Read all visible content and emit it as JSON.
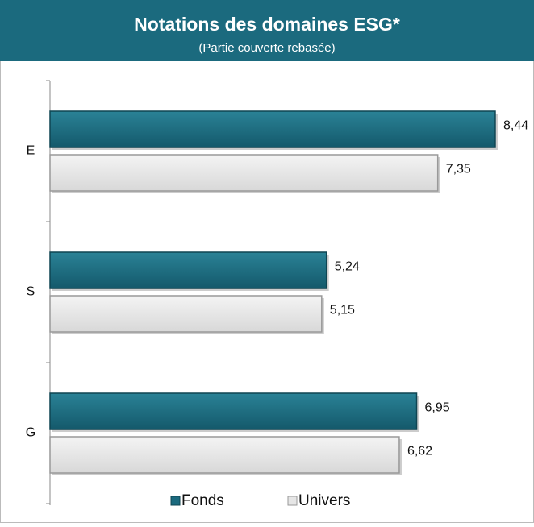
{
  "chart_data": {
    "type": "bar",
    "orientation": "horizontal",
    "title": "Notations des domaines ESG*",
    "subtitle": "(Partie couverte rebasée)",
    "categories": [
      "E",
      "S",
      "G"
    ],
    "series": [
      {
        "name": "Fonds",
        "color": "#1b6a7e",
        "values": [
          8.44,
          5.24,
          6.95
        ],
        "value_labels": [
          "8,44",
          "5,24",
          "6,95"
        ]
      },
      {
        "name": "Univers",
        "color": "#e6e6e6",
        "values": [
          7.35,
          5.15,
          6.62
        ],
        "value_labels": [
          "7,35",
          "5,15",
          "6,62"
        ]
      }
    ],
    "legend": "bottom"
  }
}
